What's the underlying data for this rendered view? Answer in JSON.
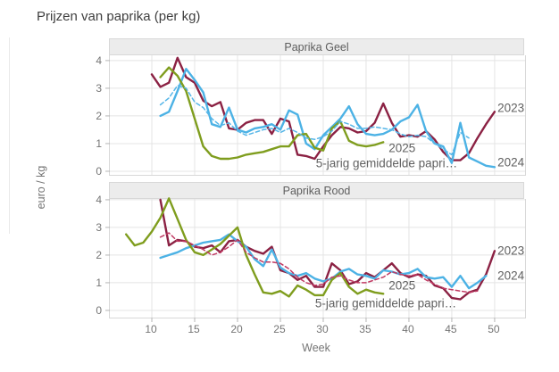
{
  "page": {
    "title": "Prijzen van paprika (per kg)"
  },
  "axes": {
    "x_label": "Week",
    "y_label": "euro / kg",
    "x_ticks": [
      10,
      15,
      20,
      25,
      30,
      35,
      40,
      45,
      50
    ],
    "y_ticks": [
      0,
      1,
      2,
      3,
      4
    ]
  },
  "colors": {
    "line_2023": "#8b2143",
    "line_2024": "#4cb2e5",
    "line_2025": "#7f9d1e",
    "avg_geel": "#56b6e8",
    "avg_rood": "#c13a63",
    "grid": "#e4e4e4",
    "panel_border": "#d8d8d8",
    "strip_bg": "#ececec",
    "annotation": "#616161"
  },
  "chart_data": [
    {
      "type": "line",
      "title": "Paprika Geel",
      "xlabel": "Week",
      "ylabel": "euro / kg",
      "xlim": [
        5.1,
        53.55
      ],
      "ylim": [
        -0.13,
        4.19
      ],
      "grid": true,
      "legend": "inline-end-labels",
      "series": [
        {
          "name": "2023",
          "color": "#8b2143",
          "dash": "solid",
          "x": [
            10,
            11,
            12,
            13,
            14,
            15,
            16,
            17,
            18,
            19,
            20,
            21,
            22,
            23,
            24,
            25,
            26,
            27,
            28,
            29,
            30,
            31,
            32,
            33,
            34,
            35,
            36,
            37,
            38,
            39,
            40,
            41,
            42,
            43,
            44,
            45,
            46,
            47,
            48,
            49,
            50
          ],
          "values": [
            3.5,
            3.05,
            3.2,
            4.1,
            3.4,
            3.2,
            2.55,
            2.35,
            2.5,
            1.55,
            1.5,
            1.75,
            1.85,
            1.85,
            1.35,
            1.9,
            1.8,
            0.6,
            0.55,
            0.45,
            0.9,
            1.3,
            1.6,
            1.55,
            1.4,
            1.45,
            1.75,
            2.45,
            1.75,
            1.25,
            1.3,
            1.25,
            1.45,
            1.15,
            0.7,
            0.4,
            0.4,
            0.65,
            1.2,
            1.7,
            2.15
          ]
        },
        {
          "name": "2024",
          "color": "#4cb2e5",
          "dash": "solid",
          "x": [
            11,
            12,
            13,
            14,
            15,
            16,
            17,
            18,
            19,
            20,
            21,
            22,
            23,
            24,
            25,
            26,
            27,
            28,
            29,
            30,
            31,
            32,
            33,
            34,
            35,
            36,
            37,
            38,
            39,
            40,
            41,
            42,
            43,
            44,
            45,
            46,
            47,
            48,
            49,
            50
          ],
          "values": [
            2.0,
            2.15,
            2.9,
            3.7,
            3.3,
            2.85,
            1.7,
            1.6,
            2.3,
            1.5,
            1.4,
            1.55,
            1.6,
            1.7,
            1.5,
            2.2,
            2.05,
            1.0,
            0.8,
            1.3,
            1.6,
            1.9,
            2.35,
            1.7,
            1.35,
            1.3,
            1.35,
            1.5,
            1.8,
            1.95,
            2.4,
            1.45,
            1.0,
            0.9,
            0.3,
            1.75,
            0.5,
            0.35,
            0.2,
            0.15
          ]
        },
        {
          "name": "2025",
          "color": "#7f9d1e",
          "dash": "solid",
          "x": [
            11,
            12,
            13,
            14,
            15,
            16,
            17,
            18,
            19,
            20,
            21,
            22,
            23,
            24,
            25,
            26,
            27,
            28,
            29,
            30,
            31,
            32,
            33,
            34,
            35,
            36,
            37
          ],
          "values": [
            3.4,
            3.75,
            3.45,
            2.9,
            1.9,
            0.9,
            0.55,
            0.45,
            0.45,
            0.5,
            0.6,
            0.65,
            0.7,
            0.8,
            0.9,
            0.9,
            1.3,
            1.35,
            0.85,
            0.75,
            1.55,
            1.8,
            1.1,
            0.95,
            0.9,
            0.95,
            1.05
          ]
        },
        {
          "name": "5-jarig gemiddelde paprika",
          "color": "#56b6e8",
          "dash": "dashed",
          "x": [
            11,
            12,
            13,
            14,
            15,
            16,
            17,
            18,
            19,
            20,
            21,
            22,
            23,
            24,
            25,
            26,
            27,
            28,
            29,
            30,
            31,
            32,
            33,
            34,
            35,
            36,
            37,
            38,
            39,
            40,
            41,
            42,
            43,
            44,
            45,
            46,
            47
          ],
          "values": [
            2.4,
            2.65,
            3.1,
            3.0,
            2.5,
            2.3,
            1.9,
            1.65,
            1.75,
            1.45,
            1.3,
            1.4,
            1.5,
            1.55,
            1.4,
            1.55,
            1.4,
            1.2,
            1.15,
            1.25,
            1.45,
            1.8,
            1.7,
            1.55,
            1.55,
            1.6,
            1.55,
            1.5,
            1.35,
            1.25,
            1.3,
            1.25,
            1.0,
            0.8,
            0.6,
            1.4,
            1.2
          ]
        }
      ],
      "annotations": [
        {
          "text": "2023",
          "week": 52,
          "value": 2.3
        },
        {
          "text": "2024",
          "week": 52,
          "value": 0.33
        },
        {
          "text": "2025",
          "week": 39.3,
          "value": 0.85
        },
        {
          "text": "5-jarig gemiddelde papri…",
          "week": 37.5,
          "value": 0.28
        }
      ]
    },
    {
      "type": "line",
      "title": "Paprika Rood",
      "xlabel": "Week",
      "ylabel": "euro / kg",
      "xlim": [
        5.1,
        53.55
      ],
      "ylim": [
        -0.26,
        4.03
      ],
      "grid": true,
      "legend": "inline-end-labels",
      "series": [
        {
          "name": "2023",
          "color": "#8b2143",
          "dash": "solid",
          "x": [
            11,
            12,
            13,
            14,
            15,
            16,
            17,
            18,
            19,
            20,
            21,
            22,
            23,
            24,
            25,
            26,
            27,
            28,
            29,
            30,
            31,
            32,
            33,
            34,
            35,
            36,
            37,
            38,
            39,
            40,
            41,
            42,
            43,
            44,
            45,
            46,
            47,
            48,
            49,
            50
          ],
          "values": [
            4.0,
            2.35,
            2.55,
            2.5,
            2.3,
            2.25,
            2.35,
            2.1,
            2.5,
            2.55,
            2.3,
            2.15,
            2.05,
            2.3,
            1.45,
            1.35,
            1.1,
            1.25,
            0.85,
            0.85,
            1.7,
            1.45,
            0.95,
            1.05,
            1.35,
            1.2,
            1.45,
            1.7,
            1.35,
            1.2,
            1.3,
            1.25,
            0.9,
            0.8,
            0.45,
            0.4,
            0.65,
            0.75,
            1.3,
            2.15
          ]
        },
        {
          "name": "2024",
          "color": "#4cb2e5",
          "dash": "solid",
          "x": [
            11,
            12,
            13,
            14,
            15,
            16,
            17,
            18,
            19,
            20,
            21,
            22,
            23,
            24,
            25,
            26,
            27,
            28,
            29,
            30,
            31,
            32,
            33,
            34,
            35,
            36,
            37,
            38,
            39,
            40,
            41,
            42,
            43,
            44,
            45,
            46,
            47,
            48,
            49
          ],
          "values": [
            1.9,
            2.0,
            2.1,
            2.25,
            2.35,
            2.45,
            2.5,
            2.55,
            2.75,
            2.5,
            2.3,
            1.85,
            1.6,
            2.2,
            1.55,
            1.35,
            1.25,
            1.35,
            1.15,
            1.05,
            1.15,
            1.4,
            1.5,
            1.3,
            1.25,
            1.15,
            1.45,
            1.4,
            1.3,
            1.35,
            1.5,
            1.2,
            1.15,
            1.2,
            0.85,
            1.25,
            0.8,
            1.0,
            1.25
          ]
        },
        {
          "name": "2025",
          "color": "#7f9d1e",
          "dash": "solid",
          "x": [
            7,
            8,
            9,
            10,
            11,
            12,
            13,
            14,
            15,
            16,
            17,
            18,
            19,
            20,
            21,
            22,
            23,
            24,
            25,
            26,
            27,
            28,
            29,
            30,
            31,
            32,
            33,
            34,
            35,
            36,
            37
          ],
          "values": [
            2.75,
            2.35,
            2.45,
            2.85,
            3.35,
            4.05,
            3.3,
            2.55,
            2.1,
            2.0,
            2.2,
            2.4,
            2.7,
            3.0,
            2.0,
            1.3,
            0.65,
            0.6,
            0.7,
            0.5,
            0.9,
            0.75,
            0.55,
            0.55,
            1.1,
            1.35,
            0.85,
            0.6,
            0.75,
            0.65,
            0.6
          ]
        },
        {
          "name": "5-jarig gemiddelde paprika",
          "color": "#c13a63",
          "dash": "dashed",
          "x": [
            11,
            12,
            13,
            14,
            15,
            16,
            17,
            18,
            19,
            20,
            21,
            22,
            23,
            24,
            25,
            26,
            27,
            28,
            29,
            30,
            31,
            32,
            33,
            34,
            35,
            36,
            37,
            38,
            39,
            40,
            41,
            42,
            43,
            44,
            45,
            46,
            47,
            48
          ],
          "values": [
            2.65,
            2.8,
            2.5,
            2.5,
            2.35,
            2.2,
            2.0,
            2.1,
            2.3,
            2.55,
            2.1,
            1.9,
            1.75,
            1.75,
            1.7,
            1.5,
            1.2,
            1.0,
            0.9,
            0.95,
            1.2,
            1.25,
            1.1,
            1.0,
            1.0,
            1.1,
            1.2,
            1.4,
            1.3,
            1.25,
            1.3,
            1.1,
            0.95,
            0.8,
            0.75,
            0.7,
            0.65,
            0.7
          ]
        }
      ],
      "annotations": [
        {
          "text": "2023",
          "week": 52,
          "value": 2.15
        },
        {
          "text": "2024",
          "week": 52,
          "value": 1.26
        },
        {
          "text": "2025",
          "week": 39.3,
          "value": 0.9
        },
        {
          "text": "5-jarig gemiddelde papri…",
          "week": 37.4,
          "value": 0.25
        }
      ]
    }
  ]
}
